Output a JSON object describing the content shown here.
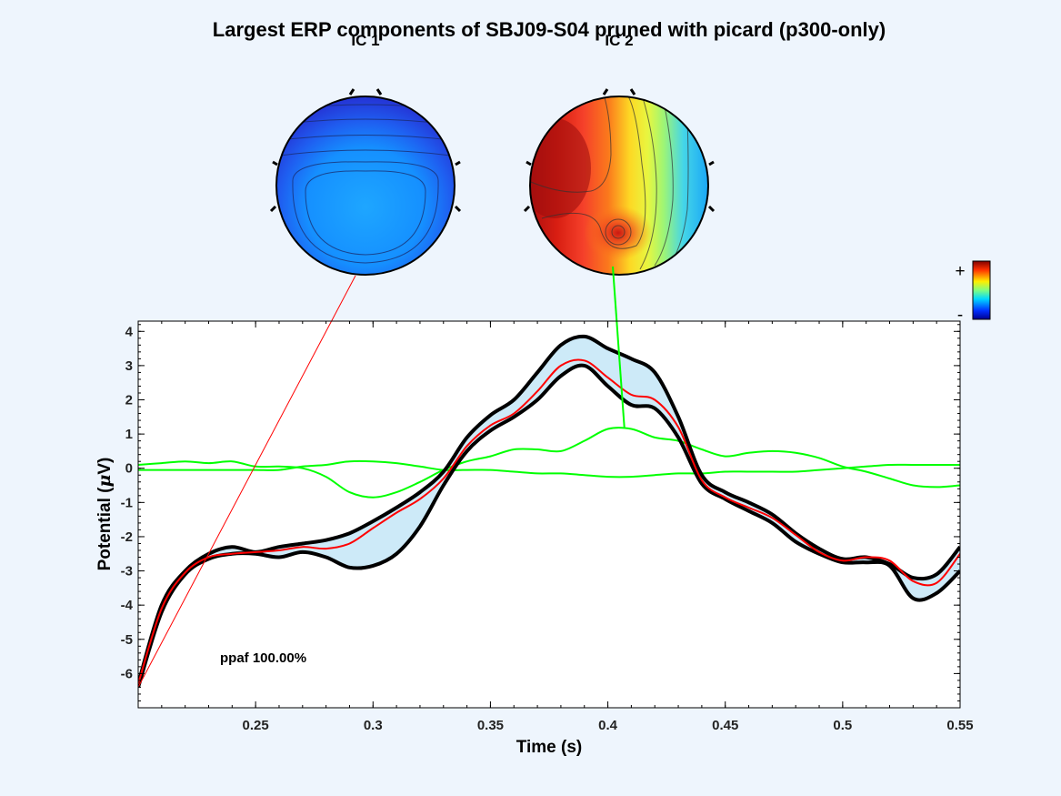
{
  "figure": {
    "title": "Largest ERP components of SBJ09-S04 pruned with picard (p300-only)",
    "colorbar": {
      "plus": "+",
      "minus": "-"
    }
  },
  "topomaps": [
    {
      "label": "IC 1",
      "line_color": "#ff0000",
      "anchor_time": 0.2,
      "anchor_value": -6.4
    },
    {
      "label": "IC 2",
      "line_color": "#00ff00",
      "anchor_time": 0.407,
      "anchor_value": 1.2
    }
  ],
  "chart_data": {
    "type": "line",
    "xlabel": "Time (s)",
    "ylabel_main": "Potential (",
    "ylabel_mu": "μ",
    "ylabel_tail": "V)",
    "xlim": [
      0.2,
      0.55
    ],
    "ylim": [
      -7.0,
      4.3
    ],
    "xticks": [
      0.25,
      0.3,
      0.35,
      0.4,
      0.45,
      0.5,
      0.55
    ],
    "xtick_labels": [
      "0.25",
      "0.3",
      "0.35",
      "0.4",
      "0.45",
      "0.5",
      "0.55"
    ],
    "yticks": [
      -6,
      -5,
      -4,
      -3,
      -2,
      -1,
      0,
      1,
      2,
      3,
      4
    ],
    "ytick_labels": [
      "-6",
      "-5",
      "-4",
      "-3",
      "-2",
      "-1",
      "0",
      "1",
      "2",
      "3",
      "4"
    ],
    "annotation": "ppaf 100.00%",
    "colors": {
      "envelope_fill": "#cdeaf8",
      "envelope_line": "#000000",
      "erp": "#ff0000",
      "components": "#00ff00"
    },
    "series": [
      {
        "role": "envelope-upper",
        "x": [
          0.2,
          0.21,
          0.22,
          0.23,
          0.24,
          0.25,
          0.26,
          0.27,
          0.28,
          0.29,
          0.3,
          0.31,
          0.32,
          0.33,
          0.34,
          0.35,
          0.36,
          0.37,
          0.38,
          0.39,
          0.4,
          0.41,
          0.42,
          0.43,
          0.44,
          0.45,
          0.46,
          0.47,
          0.48,
          0.49,
          0.5,
          0.51,
          0.52,
          0.53,
          0.54,
          0.55
        ],
        "y": [
          -6.3,
          -4.0,
          -3.0,
          -2.5,
          -2.3,
          -2.45,
          -2.3,
          -2.2,
          -2.1,
          -1.9,
          -1.55,
          -1.15,
          -0.7,
          -0.1,
          0.9,
          1.55,
          2.0,
          2.8,
          3.6,
          3.85,
          3.5,
          3.2,
          2.8,
          1.5,
          -0.2,
          -0.7,
          -1.0,
          -1.35,
          -1.9,
          -2.35,
          -2.65,
          -2.6,
          -2.8,
          -3.2,
          -3.1,
          -2.3
        ]
      },
      {
        "role": "envelope-lower",
        "x": [
          0.2,
          0.21,
          0.22,
          0.23,
          0.24,
          0.25,
          0.26,
          0.27,
          0.28,
          0.29,
          0.3,
          0.31,
          0.32,
          0.33,
          0.34,
          0.35,
          0.36,
          0.37,
          0.38,
          0.39,
          0.4,
          0.41,
          0.42,
          0.43,
          0.44,
          0.45,
          0.46,
          0.47,
          0.48,
          0.49,
          0.5,
          0.51,
          0.52,
          0.53,
          0.54,
          0.55
        ],
        "y": [
          -6.4,
          -4.2,
          -3.1,
          -2.65,
          -2.5,
          -2.5,
          -2.6,
          -2.45,
          -2.6,
          -2.9,
          -2.85,
          -2.5,
          -1.7,
          -0.5,
          0.5,
          1.1,
          1.5,
          2.0,
          2.7,
          3.0,
          2.4,
          1.85,
          1.75,
          0.9,
          -0.45,
          -0.9,
          -1.25,
          -1.6,
          -2.15,
          -2.5,
          -2.75,
          -2.75,
          -2.85,
          -3.8,
          -3.65,
          -3.0
        ]
      },
      {
        "role": "erp",
        "x": [
          0.2,
          0.21,
          0.22,
          0.23,
          0.24,
          0.25,
          0.26,
          0.27,
          0.28,
          0.29,
          0.3,
          0.31,
          0.32,
          0.33,
          0.34,
          0.35,
          0.36,
          0.37,
          0.38,
          0.39,
          0.4,
          0.41,
          0.42,
          0.43,
          0.44,
          0.45,
          0.46,
          0.47,
          0.48,
          0.49,
          0.5,
          0.51,
          0.52,
          0.53,
          0.54,
          0.55
        ],
        "y": [
          -6.3,
          -4.1,
          -3.05,
          -2.6,
          -2.5,
          -2.45,
          -2.4,
          -2.3,
          -2.35,
          -2.2,
          -1.75,
          -1.3,
          -0.9,
          -0.3,
          0.65,
          1.25,
          1.6,
          2.25,
          3.0,
          3.15,
          2.65,
          2.15,
          2.0,
          1.2,
          -0.35,
          -0.85,
          -1.15,
          -1.45,
          -1.95,
          -2.45,
          -2.7,
          -2.6,
          -2.7,
          -3.3,
          -3.35,
          -2.5
        ]
      },
      {
        "role": "component",
        "name": "IC 1",
        "x": [
          0.2,
          0.21,
          0.22,
          0.23,
          0.24,
          0.25,
          0.26,
          0.27,
          0.28,
          0.29,
          0.3,
          0.31,
          0.32,
          0.33,
          0.34,
          0.35,
          0.36,
          0.37,
          0.38,
          0.39,
          0.4,
          0.41,
          0.42,
          0.43,
          0.44,
          0.45,
          0.46,
          0.47,
          0.48,
          0.49,
          0.5,
          0.51,
          0.52,
          0.53,
          0.54,
          0.55
        ],
        "y": [
          0.1,
          0.15,
          0.2,
          0.15,
          0.2,
          0.05,
          0.05,
          0.0,
          -0.25,
          -0.7,
          -0.85,
          -0.7,
          -0.4,
          -0.05,
          0.2,
          0.35,
          0.55,
          0.55,
          0.5,
          0.8,
          1.15,
          1.15,
          0.9,
          0.8,
          0.55,
          0.35,
          0.45,
          0.5,
          0.45,
          0.3,
          0.05,
          -0.1,
          -0.3,
          -0.5,
          -0.55,
          -0.5
        ]
      },
      {
        "role": "component",
        "name": "IC 2",
        "x": [
          0.2,
          0.21,
          0.22,
          0.23,
          0.24,
          0.25,
          0.26,
          0.27,
          0.28,
          0.29,
          0.3,
          0.31,
          0.32,
          0.33,
          0.34,
          0.35,
          0.36,
          0.37,
          0.38,
          0.39,
          0.4,
          0.41,
          0.42,
          0.43,
          0.44,
          0.45,
          0.46,
          0.47,
          0.48,
          0.49,
          0.5,
          0.51,
          0.52,
          0.53,
          0.54,
          0.55
        ],
        "y": [
          -0.05,
          -0.05,
          -0.05,
          -0.05,
          -0.05,
          -0.05,
          -0.05,
          0.05,
          0.1,
          0.2,
          0.2,
          0.15,
          0.05,
          -0.05,
          -0.05,
          -0.05,
          -0.1,
          -0.15,
          -0.15,
          -0.2,
          -0.25,
          -0.25,
          -0.2,
          -0.15,
          -0.15,
          -0.1,
          -0.1,
          -0.1,
          -0.1,
          -0.05,
          0.0,
          0.05,
          0.1,
          0.1,
          0.1,
          0.1
        ]
      }
    ]
  }
}
